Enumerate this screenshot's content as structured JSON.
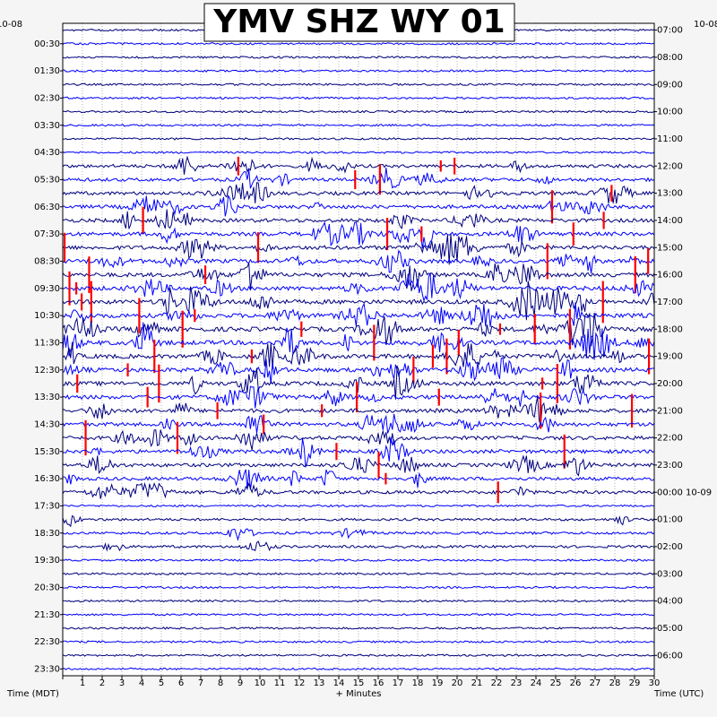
{
  "chart_data": {
    "type": "helicorder",
    "title": "YMV SHZ WY 01",
    "date_left": "10-08",
    "date_right": "10-08",
    "xlabel": "+ Minutes",
    "ylabel_left": "Time (MDT)",
    "ylabel_right": "Time (UTC)",
    "xlim": [
      0,
      30
    ],
    "x_ticks": [
      "1",
      "2",
      "3",
      "4",
      "5",
      "6",
      "7",
      "8",
      "9",
      "10",
      "11",
      "12",
      "13",
      "14",
      "15",
      "16",
      "17",
      "18",
      "19",
      "20",
      "21",
      "22",
      "23",
      "24",
      "25",
      "26",
      "27",
      "28",
      "29",
      "30"
    ],
    "left_times": [
      "00:30",
      "01:30",
      "02:30",
      "03:30",
      "04:30",
      "05:30",
      "06:30",
      "07:30",
      "08:30",
      "09:30",
      "10:30",
      "11:30",
      "12:30",
      "13:30",
      "14:30",
      "15:30",
      "16:30",
      "17:30",
      "18:30",
      "19:30",
      "20:30",
      "21:30",
      "22:30",
      "23:30"
    ],
    "right_times": [
      "07:00",
      "08:00",
      "09:00",
      "10:00",
      "11:00",
      "12:00",
      "13:00",
      "14:00",
      "15:00",
      "16:00",
      "17:00",
      "18:00",
      "19:00",
      "20:00",
      "21:00",
      "22:00",
      "23:00",
      "00:00 10-09",
      "01:00",
      "02:00",
      "03:00",
      "04:00",
      "05:00",
      "06:00"
    ],
    "traces_per_row_label": 2,
    "grid": true,
    "colors": {
      "trace_a": "#0000ff",
      "trace_b": "#000080",
      "clip": "#ff0000",
      "grid": "#808080",
      "frame": "#000000",
      "background": "#ffffff",
      "margin_bg": "#f5f5f5"
    },
    "activity": {
      "quiet_rows": "00:00-05:00 and 18:00-24:00 MDT",
      "swarm_rows": "05:30-17:30 MDT",
      "clipped_events": "red spikes indicate clipped amplitude"
    }
  }
}
